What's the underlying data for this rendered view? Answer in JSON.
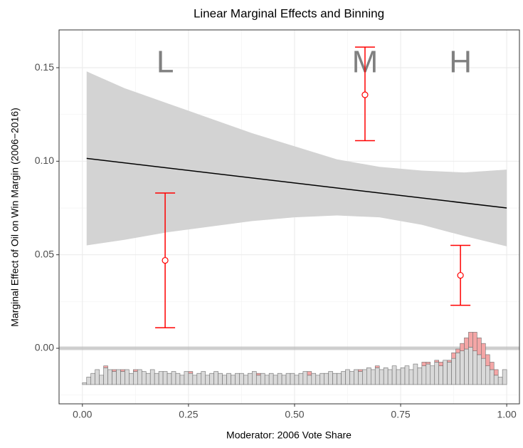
{
  "chart_data": {
    "type": "marginal-effects",
    "title": "Linear Marginal Effects and Binning",
    "xlabel": "Moderator: 2006 Vote Share",
    "ylabel": "Marginal Effect of Oil on Win Margin (2006−2016)",
    "xlim": [
      -0.055,
      1.03
    ],
    "ylim": [
      -0.0297,
      0.1702
    ],
    "xticks": [
      {
        "value": 0,
        "label": "0.00"
      },
      {
        "value": 0.25,
        "label": "0.25"
      },
      {
        "value": 0.5,
        "label": "0.50"
      },
      {
        "value": 0.75,
        "label": "0.75"
      },
      {
        "value": 1,
        "label": "1.00"
      }
    ],
    "yticks": [
      {
        "value": 0,
        "label": "0.00"
      },
      {
        "value": 0.05,
        "label": "0.05"
      },
      {
        "value": 0.1,
        "label": "0.10"
      },
      {
        "value": 0.15,
        "label": "0.15"
      }
    ],
    "minor_xticks": [
      0.125,
      0.375,
      0.625,
      0.875
    ],
    "minor_yticks": [
      -0.025,
      0.025,
      0.075,
      0.125
    ],
    "grid": true,
    "reference_line": 0,
    "line": {
      "x": [
        0.01,
        1.0
      ],
      "values": [
        0.1015,
        0.075
      ],
      "color": "#000000"
    },
    "band": {
      "x": [
        0.01,
        0.1,
        0.2,
        0.3,
        0.4,
        0.5,
        0.6,
        0.7,
        0.8,
        0.9,
        1.0
      ],
      "lower": [
        0.055,
        0.058,
        0.062,
        0.065,
        0.068,
        0.07,
        0.071,
        0.07,
        0.066,
        0.06,
        0.0545
      ],
      "upper": [
        0.148,
        0.139,
        0.131,
        0.123,
        0.115,
        0.108,
        0.101,
        0.097,
        0.095,
        0.094,
        0.0955
      ],
      "color": "#d3d3d3"
    },
    "bin_estimates": {
      "labels": [
        "L",
        "M",
        "H"
      ],
      "x": [
        0.195,
        0.666,
        0.891
      ],
      "values": [
        0.047,
        0.1355,
        0.039
      ],
      "lower": [
        0.011,
        0.111,
        0.023
      ],
      "upper": [
        0.083,
        0.161,
        0.055
      ],
      "label_y": 0.152,
      "color": "#ff0000"
    },
    "histogram": {
      "base": -0.0194,
      "control_color": "#d9d9d9",
      "treated_color": "#f4a6a6",
      "bins": [
        0,
        0.01,
        0.02,
        0.03,
        0.04,
        0.05,
        0.06,
        0.07,
        0.08,
        0.09,
        0.1,
        0.11,
        0.12,
        0.13,
        0.14,
        0.15,
        0.16,
        0.17,
        0.18,
        0.19,
        0.2,
        0.21,
        0.22,
        0.23,
        0.24,
        0.25,
        0.26,
        0.27,
        0.28,
        0.29,
        0.3,
        0.31,
        0.32,
        0.33,
        0.34,
        0.35,
        0.36,
        0.37,
        0.38,
        0.39,
        0.4,
        0.41,
        0.42,
        0.43,
        0.44,
        0.45,
        0.46,
        0.47,
        0.48,
        0.49,
        0.5,
        0.51,
        0.52,
        0.53,
        0.54,
        0.55,
        0.56,
        0.57,
        0.58,
        0.59,
        0.6,
        0.61,
        0.62,
        0.63,
        0.64,
        0.65,
        0.66,
        0.67,
        0.68,
        0.69,
        0.7,
        0.71,
        0.72,
        0.73,
        0.74,
        0.75,
        0.76,
        0.77,
        0.78,
        0.79,
        0.8,
        0.81,
        0.82,
        0.83,
        0.84,
        0.85,
        0.86,
        0.87,
        0.88,
        0.89,
        0.9,
        0.91,
        0.92,
        0.93,
        0.94,
        0.95,
        0.96,
        0.97,
        0.98,
        0.99,
        1.0
      ],
      "control": [
        0.001,
        0.004,
        0.006,
        0.008,
        0.005,
        0.009,
        0.008,
        0.007,
        0.008,
        0.007,
        0.008,
        0.006,
        0.007,
        0.008,
        0.007,
        0.006,
        0.008,
        0.006,
        0.007,
        0.007,
        0.006,
        0.007,
        0.006,
        0.005,
        0.007,
        0.006,
        0.005,
        0.006,
        0.007,
        0.005,
        0.006,
        0.007,
        0.006,
        0.005,
        0.006,
        0.005,
        0.006,
        0.006,
        0.005,
        0.006,
        0.007,
        0.005,
        0.006,
        0.005,
        0.006,
        0.005,
        0.006,
        0.005,
        0.006,
        0.006,
        0.005,
        0.006,
        0.007,
        0.005,
        0.006,
        0.005,
        0.006,
        0.006,
        0.007,
        0.006,
        0.006,
        0.007,
        0.008,
        0.007,
        0.008,
        0.007,
        0.008,
        0.009,
        0.008,
        0.009,
        0.008,
        0.009,
        0.008,
        0.01,
        0.008,
        0.009,
        0.01,
        0.008,
        0.011,
        0.009,
        0.01,
        0.011,
        0.01,
        0.012,
        0.01,
        0.013,
        0.012,
        0.014,
        0.017,
        0.018,
        0.019,
        0.02,
        0.018,
        0.016,
        0.014,
        0.01,
        0.008,
        0.005,
        0.004,
        0.008
      ],
      "treated": [
        0,
        0,
        0,
        0,
        0,
        0.001,
        0,
        0.001,
        0,
        0.001,
        0,
        0,
        0.001,
        0,
        0,
        0,
        0,
        0,
        0,
        0,
        0,
        0,
        0,
        0,
        0,
        0.001,
        0,
        0,
        0,
        0,
        0,
        0,
        0,
        0,
        0,
        0,
        0,
        0,
        0,
        0,
        0,
        0.001,
        0,
        0,
        0,
        0,
        0,
        0,
        0,
        0,
        0,
        0,
        0,
        0.002,
        0,
        0,
        0,
        0,
        0,
        0,
        0,
        0,
        0,
        0,
        0,
        0.001,
        0,
        0,
        0,
        0.001,
        0,
        0,
        0,
        0,
        0,
        0,
        0,
        0,
        0,
        0,
        0.002,
        0.001,
        0,
        0.001,
        0.002,
        0,
        0.001,
        0.003,
        0.002,
        0.004,
        0.006,
        0.008,
        0.01,
        0.009,
        0.008,
        0.006,
        0.004,
        0.003,
        0,
        0
      ]
    }
  }
}
